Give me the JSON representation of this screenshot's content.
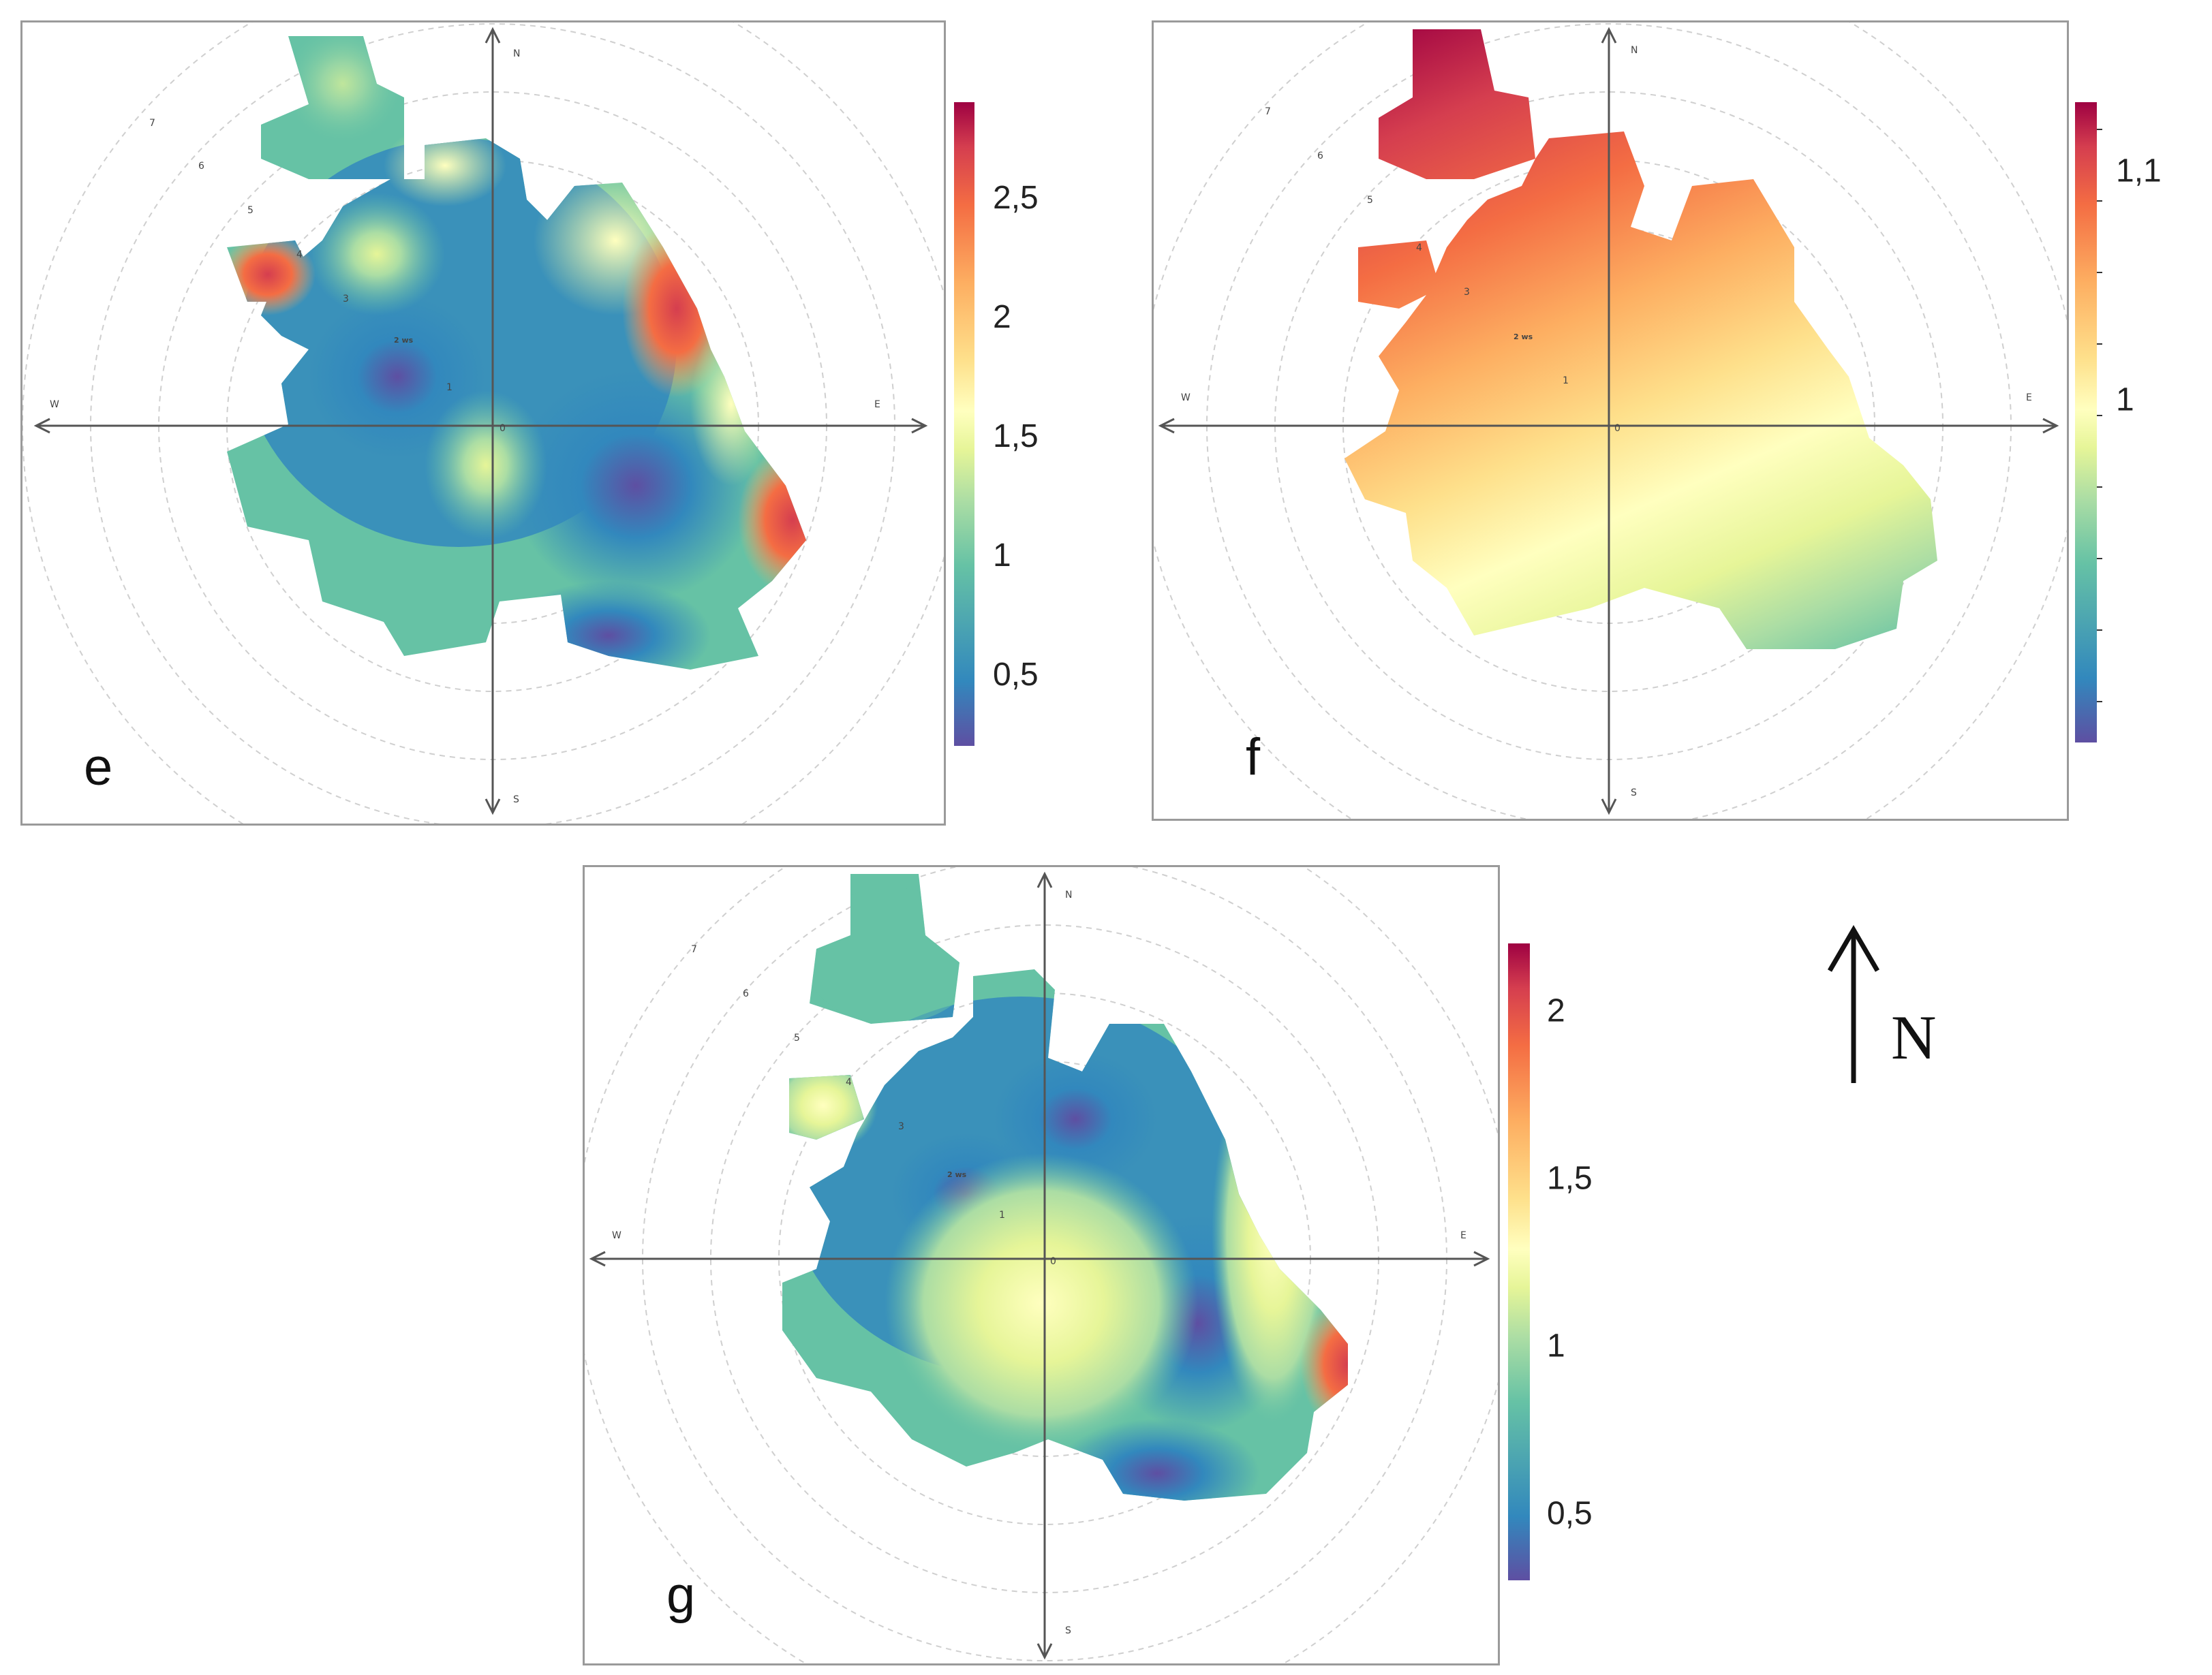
{
  "figure": {
    "north_indicator": "N",
    "icons": [
      "north-arrow-icon"
    ]
  },
  "chart_data": [
    {
      "type": "heatmap",
      "panel_label": "e",
      "title": "",
      "axis_labels": {
        "north": "N",
        "south": "S",
        "east": "E",
        "west": "W"
      },
      "ring_labels": [
        "0",
        "1",
        "2 ws",
        "3",
        "4",
        "5",
        "6",
        "7"
      ],
      "colorbar": {
        "tick_labels": [
          "0,5",
          "1",
          "1,5",
          "2",
          "2,5"
        ],
        "tick_values": [
          0.5,
          1,
          1.5,
          2,
          2.5
        ],
        "range": [
          0.2,
          2.9
        ]
      },
      "colormap": [
        "#5e4fa2",
        "#3288bd",
        "#66c2a5",
        "#abdda4",
        "#e6f598",
        "#ffffbf",
        "#fee08b",
        "#fdae61",
        "#f46d43",
        "#d53e4f",
        "#9e0142"
      ],
      "grid": true
    },
    {
      "type": "heatmap",
      "panel_label": "f",
      "title": "",
      "axis_labels": {
        "north": "N",
        "south": "S",
        "east": "E",
        "west": "W"
      },
      "ring_labels": [
        "0",
        "1",
        "2 ws",
        "3",
        "4",
        "5",
        "6",
        "7"
      ],
      "colorbar": {
        "tick_labels": [
          "1",
          "1,1"
        ],
        "tick_values": [
          1.0,
          1.1
        ],
        "range": [
          0.85,
          1.13
        ]
      },
      "colormap": [
        "#5e4fa2",
        "#3288bd",
        "#66c2a5",
        "#abdda4",
        "#e6f598",
        "#ffffbf",
        "#fee08b",
        "#fdae61",
        "#f46d43",
        "#d53e4f",
        "#9e0142"
      ],
      "grid": true
    },
    {
      "type": "heatmap",
      "panel_label": "g",
      "title": "",
      "axis_labels": {
        "north": "N",
        "south": "S",
        "east": "E",
        "west": "W"
      },
      "ring_labels": [
        "0",
        "1",
        "2 ws",
        "3",
        "4",
        "5",
        "6",
        "7"
      ],
      "colorbar": {
        "tick_labels": [
          "0,5",
          "1",
          "1,5",
          "2"
        ],
        "tick_values": [
          0.5,
          1,
          1.5,
          2
        ],
        "range": [
          0.3,
          2.2
        ]
      },
      "colormap": [
        "#5e4fa2",
        "#3288bd",
        "#66c2a5",
        "#abdda4",
        "#e6f598",
        "#ffffbf",
        "#fee08b",
        "#fdae61",
        "#f46d43",
        "#d53e4f",
        "#9e0142"
      ],
      "grid": true
    }
  ]
}
